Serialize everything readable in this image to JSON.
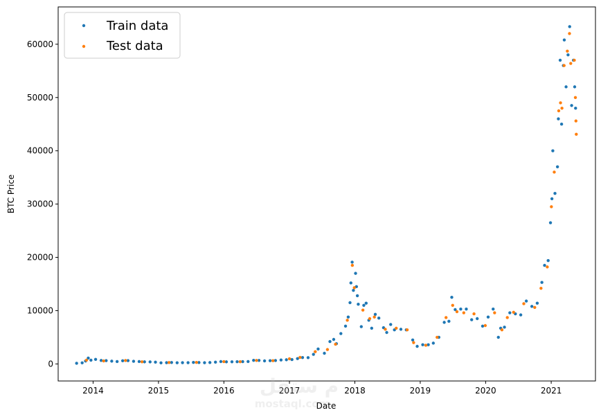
{
  "chart_data": {
    "type": "scatter",
    "title": "",
    "xlabel": "Date",
    "ylabel": "BTC Price",
    "xlim": [
      "2013-06-20",
      "2021-09-05"
    ],
    "ylim": [
      -3200,
      67000
    ],
    "grid": false,
    "legend_position": "top-left",
    "x_ticks": [
      "2014",
      "2015",
      "2016",
      "2017",
      "2018",
      "2019",
      "2020",
      "2021"
    ],
    "x_tick_dates": [
      "2014-01-01",
      "2015-01-01",
      "2016-01-01",
      "2017-01-01",
      "2018-01-01",
      "2019-01-01",
      "2020-01-01",
      "2021-01-01"
    ],
    "y_ticks": [
      0,
      10000,
      20000,
      30000,
      40000,
      50000,
      60000
    ],
    "y_tick_labels": [
      "0",
      "10000",
      "20000",
      "30000",
      "40000",
      "50000",
      "60000"
    ],
    "series": [
      {
        "name": "Train data",
        "color": "#1f77b4",
        "points": [
          [
            "2013-10-01",
            125
          ],
          [
            "2013-11-01",
            210
          ],
          [
            "2013-11-20",
            550
          ],
          [
            "2013-12-05",
            1100
          ],
          [
            "2013-12-20",
            700
          ],
          [
            "2014-01-15",
            850
          ],
          [
            "2014-02-15",
            650
          ],
          [
            "2014-03-15",
            620
          ],
          [
            "2014-04-15",
            520
          ],
          [
            "2014-05-15",
            450
          ],
          [
            "2014-06-15",
            600
          ],
          [
            "2014-07-15",
            620
          ],
          [
            "2014-08-15",
            500
          ],
          [
            "2014-09-15",
            450
          ],
          [
            "2014-10-15",
            390
          ],
          [
            "2014-11-15",
            380
          ],
          [
            "2014-12-15",
            330
          ],
          [
            "2015-01-15",
            210
          ],
          [
            "2015-02-15",
            240
          ],
          [
            "2015-03-15",
            270
          ],
          [
            "2015-04-15",
            225
          ],
          [
            "2015-05-15",
            237
          ],
          [
            "2015-06-15",
            240
          ],
          [
            "2015-07-15",
            285
          ],
          [
            "2015-08-15",
            260
          ],
          [
            "2015-09-15",
            230
          ],
          [
            "2015-10-15",
            260
          ],
          [
            "2015-11-15",
            330
          ],
          [
            "2015-12-15",
            440
          ],
          [
            "2016-01-15",
            390
          ],
          [
            "2016-02-15",
            400
          ],
          [
            "2016-03-15",
            415
          ],
          [
            "2016-04-15",
            430
          ],
          [
            "2016-05-15",
            450
          ],
          [
            "2016-06-15",
            680
          ],
          [
            "2016-07-15",
            660
          ],
          [
            "2016-08-15",
            570
          ],
          [
            "2016-09-15",
            610
          ],
          [
            "2016-10-15",
            640
          ],
          [
            "2016-11-15",
            740
          ],
          [
            "2016-12-15",
            780
          ],
          [
            "2017-01-15",
            820
          ],
          [
            "2017-02-15",
            1000
          ],
          [
            "2017-03-15",
            1200
          ],
          [
            "2017-04-15",
            1180
          ],
          [
            "2017-05-15",
            1800
          ],
          [
            "2017-06-10",
            2800
          ],
          [
            "2017-07-15",
            2000
          ],
          [
            "2017-08-15",
            4200
          ],
          [
            "2017-09-05",
            4600
          ],
          [
            "2017-09-20",
            3800
          ],
          [
            "2017-10-15",
            5700
          ],
          [
            "2017-11-10",
            7100
          ],
          [
            "2017-11-25",
            8800
          ],
          [
            "2017-12-05",
            11500
          ],
          [
            "2017-12-10",
            15200
          ],
          [
            "2017-12-17",
            19100
          ],
          [
            "2017-12-24",
            13800
          ],
          [
            "2018-01-05",
            17000
          ],
          [
            "2018-01-10",
            14500
          ],
          [
            "2018-01-15",
            12800
          ],
          [
            "2018-01-20",
            11200
          ],
          [
            "2018-02-06",
            7000
          ],
          [
            "2018-02-20",
            11000
          ],
          [
            "2018-03-05",
            11400
          ],
          [
            "2018-03-20",
            8200
          ],
          [
            "2018-04-05",
            6700
          ],
          [
            "2018-04-25",
            9300
          ],
          [
            "2018-05-15",
            8600
          ],
          [
            "2018-06-10",
            6800
          ],
          [
            "2018-06-28",
            5900
          ],
          [
            "2018-07-20",
            7400
          ],
          [
            "2018-08-10",
            6400
          ],
          [
            "2018-09-15",
            6500
          ],
          [
            "2018-10-15",
            6400
          ],
          [
            "2018-11-20",
            4500
          ],
          [
            "2018-12-15",
            3300
          ],
          [
            "2019-01-15",
            3600
          ],
          [
            "2019-02-15",
            3600
          ],
          [
            "2019-03-15",
            3900
          ],
          [
            "2019-04-15",
            5000
          ],
          [
            "2019-05-15",
            7800
          ],
          [
            "2019-06-10",
            8000
          ],
          [
            "2019-06-26",
            12500
          ],
          [
            "2019-07-15",
            10200
          ],
          [
            "2019-08-15",
            10300
          ],
          [
            "2019-09-15",
            10300
          ],
          [
            "2019-10-15",
            8300
          ],
          [
            "2019-11-15",
            8500
          ],
          [
            "2019-12-15",
            7100
          ],
          [
            "2020-01-15",
            8800
          ],
          [
            "2020-02-12",
            10300
          ],
          [
            "2020-03-12",
            5000
          ],
          [
            "2020-03-25",
            6700
          ],
          [
            "2020-04-15",
            6900
          ],
          [
            "2020-05-15",
            9600
          ],
          [
            "2020-06-15",
            9400
          ],
          [
            "2020-07-15",
            9200
          ],
          [
            "2020-08-15",
            11800
          ],
          [
            "2020-09-15",
            10800
          ],
          [
            "2020-10-15",
            11400
          ],
          [
            "2020-11-10",
            15300
          ],
          [
            "2020-11-25",
            18500
          ],
          [
            "2020-12-15",
            19400
          ],
          [
            "2020-12-28",
            26500
          ],
          [
            "2021-01-05",
            31000
          ],
          [
            "2021-01-10",
            40000
          ],
          [
            "2021-01-22",
            32000
          ],
          [
            "2021-02-05",
            37000
          ],
          [
            "2021-02-10",
            46000
          ],
          [
            "2021-02-20",
            57000
          ],
          [
            "2021-02-28",
            45000
          ],
          [
            "2021-03-10",
            56000
          ],
          [
            "2021-03-15",
            60800
          ],
          [
            "2021-03-25",
            52000
          ],
          [
            "2021-04-05",
            58000
          ],
          [
            "2021-04-14",
            63300
          ],
          [
            "2021-04-25",
            48500
          ],
          [
            "2021-05-05",
            57000
          ],
          [
            "2021-05-12",
            52000
          ],
          [
            "2021-05-17",
            48000
          ]
        ]
      },
      {
        "name": "Test data",
        "color": "#ff7f0e",
        "points": [
          [
            "2013-11-25",
            700
          ],
          [
            "2014-03-01",
            560
          ],
          [
            "2014-07-01",
            640
          ],
          [
            "2014-10-01",
            400
          ],
          [
            "2015-03-01",
            260
          ],
          [
            "2015-08-01",
            280
          ],
          [
            "2016-01-01",
            430
          ],
          [
            "2016-04-01",
            420
          ],
          [
            "2016-07-01",
            650
          ],
          [
            "2016-10-01",
            615
          ],
          [
            "2017-01-01",
            970
          ],
          [
            "2017-03-01",
            1230
          ],
          [
            "2017-05-25",
            2300
          ],
          [
            "2017-08-01",
            2700
          ],
          [
            "2017-09-15",
            3700
          ],
          [
            "2017-11-20",
            8200
          ],
          [
            "2017-12-18",
            18500
          ],
          [
            "2017-12-29",
            14300
          ],
          [
            "2018-02-15",
            10100
          ],
          [
            "2018-03-25",
            8500
          ],
          [
            "2018-04-20",
            8800
          ],
          [
            "2018-06-20",
            6500
          ],
          [
            "2018-08-20",
            6700
          ],
          [
            "2018-10-20",
            6400
          ],
          [
            "2018-11-25",
            4000
          ],
          [
            "2019-02-01",
            3500
          ],
          [
            "2019-04-05",
            5000
          ],
          [
            "2019-05-25",
            8700
          ],
          [
            "2019-07-01",
            11000
          ],
          [
            "2019-07-25",
            9800
          ],
          [
            "2019-09-01",
            9600
          ],
          [
            "2019-10-28",
            9400
          ],
          [
            "2019-12-30",
            7200
          ],
          [
            "2020-02-20",
            9600
          ],
          [
            "2020-04-01",
            6400
          ],
          [
            "2020-05-01",
            8700
          ],
          [
            "2020-06-05",
            9700
          ],
          [
            "2020-08-01",
            11300
          ],
          [
            "2020-10-01",
            10600
          ],
          [
            "2020-11-05",
            14200
          ],
          [
            "2020-12-10",
            18200
          ],
          [
            "2021-01-02",
            29500
          ],
          [
            "2021-01-18",
            36000
          ],
          [
            "2021-02-12",
            47500
          ],
          [
            "2021-02-22",
            49000
          ],
          [
            "2021-03-02",
            48000
          ],
          [
            "2021-03-14",
            56000
          ],
          [
            "2021-04-01",
            58700
          ],
          [
            "2021-04-13",
            62000
          ],
          [
            "2021-04-20",
            56400
          ],
          [
            "2021-05-10",
            57000
          ],
          [
            "2021-05-16",
            50000
          ],
          [
            "2021-05-19",
            45600
          ],
          [
            "2021-05-21",
            43100
          ]
        ]
      }
    ],
    "watermark": "mostaql.com"
  }
}
